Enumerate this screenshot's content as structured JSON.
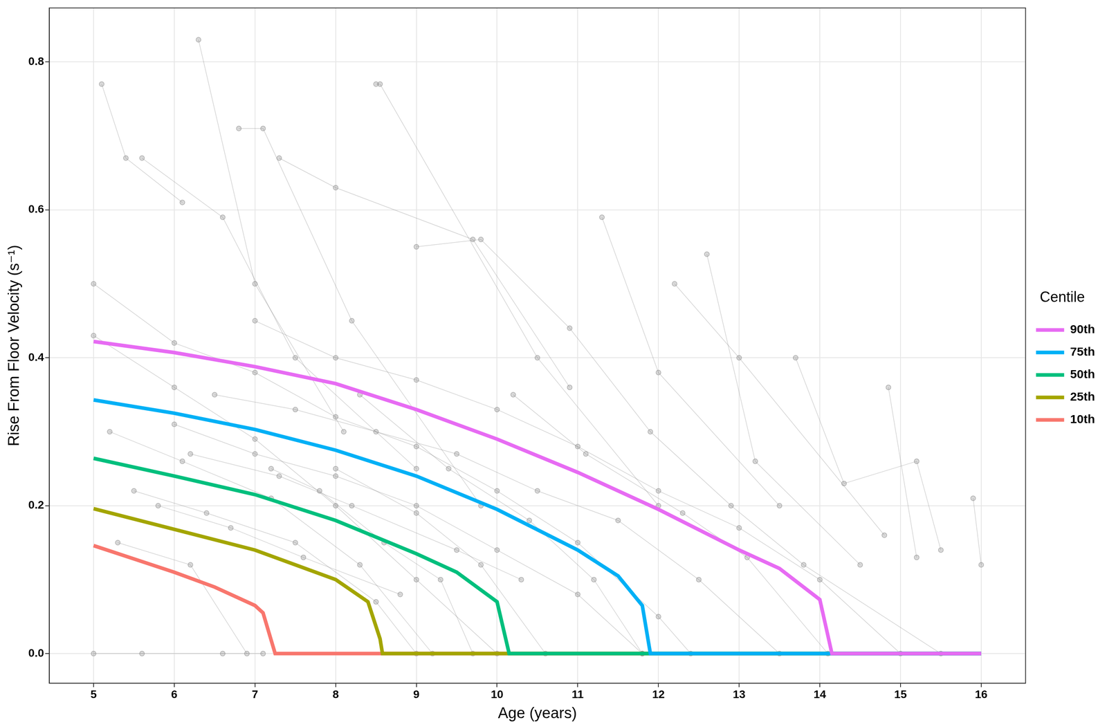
{
  "chart_data": {
    "type": "line",
    "x_label": "Age (years)",
    "y_label": "Rise From Floor Velocity (s⁻¹)",
    "xlim": [
      4.45,
      16.55
    ],
    "ylim": [
      -0.04,
      0.873
    ],
    "xticks": [
      5,
      6,
      7,
      8,
      9,
      10,
      11,
      12,
      13,
      14,
      15,
      16
    ],
    "yticks": [
      {
        "value": 0,
        "label": "0.0"
      },
      0.2,
      0.4,
      0.6,
      0.8
    ],
    "grid": true,
    "legend": "right",
    "legend_title": "Centile",
    "series": [
      {
        "name": "90th",
        "color": "#E76BF3",
        "line_style": "solid",
        "x": [
          5,
          6,
          7,
          8,
          9,
          10,
          11,
          12,
          13,
          13.5,
          14,
          14.15,
          16
        ],
        "values": [
          0.422,
          0.407,
          0.388,
          0.365,
          0.33,
          0.29,
          0.245,
          0.195,
          0.14,
          0.115,
          0.073,
          0,
          0
        ]
      },
      {
        "name": "75th",
        "color": "#00B0F6",
        "line_style": "solid",
        "x": [
          5,
          6,
          7,
          8,
          9,
          10,
          11,
          11.5,
          11.8,
          11.9,
          16
        ],
        "values": [
          0.343,
          0.325,
          0.303,
          0.275,
          0.24,
          0.195,
          0.14,
          0.105,
          0.065,
          0,
          0
        ]
      },
      {
        "name": "50th",
        "color": "#00BF7D",
        "line_style": "solid",
        "x": [
          5,
          6,
          7,
          8,
          9,
          9.5,
          10,
          10.15,
          16
        ],
        "values": [
          0.264,
          0.24,
          0.215,
          0.18,
          0.135,
          0.11,
          0.07,
          0,
          0
        ]
      },
      {
        "name": "25th",
        "color": "#A3A500",
        "line_style": "solid",
        "x": [
          5,
          6,
          7,
          7.5,
          8,
          8.4,
          8.55,
          8.58,
          16
        ],
        "values": [
          0.196,
          0.168,
          0.14,
          0.12,
          0.1,
          0.07,
          0.02,
          0,
          0
        ]
      },
      {
        "name": "10th",
        "color": "#F8766D",
        "line_style": "solid",
        "x": [
          5,
          5.5,
          6,
          6.5,
          7,
          7.1,
          7.25,
          16
        ],
        "values": [
          0.146,
          0.128,
          0.11,
          0.09,
          0.065,
          0.055,
          0,
          0
        ]
      }
    ],
    "trajectories": {
      "color": "#808080",
      "marker": "circle",
      "series": [
        {
          "x": [
            5.1,
            5.4,
            6.1
          ],
          "values": [
            0.77,
            0.67,
            0.61
          ]
        },
        {
          "x": [
            6.3,
            7.0,
            8.1
          ],
          "values": [
            0.83,
            0.5,
            0.3
          ]
        },
        {
          "x": [
            8.5,
            8.55,
            10.5,
            12.0
          ],
          "values": [
            0.77,
            0.77,
            0.4,
            0.2
          ]
        },
        {
          "x": [
            5.6,
            6.6,
            7.5,
            9.0
          ],
          "values": [
            0.67,
            0.59,
            0.4,
            0.25
          ]
        },
        {
          "x": [
            6.8,
            7.1,
            8.2,
            9.8
          ],
          "values": [
            0.71,
            0.71,
            0.45,
            0.2
          ]
        },
        {
          "x": [
            7.3,
            8.0,
            9.7,
            10.9
          ],
          "values": [
            0.67,
            0.63,
            0.56,
            0.36
          ]
        },
        {
          "x": [
            11.3,
            12.0,
            13.5
          ],
          "values": [
            0.59,
            0.38,
            0.2
          ]
        },
        {
          "x": [
            12.6,
            13.2,
            14.5
          ],
          "values": [
            0.54,
            0.26,
            0.12
          ]
        },
        {
          "x": [
            12.2,
            13.0,
            14.8
          ],
          "values": [
            0.5,
            0.4,
            0.16
          ]
        },
        {
          "x": [
            13.7,
            14.3,
            15.2,
            15.5
          ],
          "values": [
            0.4,
            0.23,
            0.26,
            0.14
          ]
        },
        {
          "x": [
            14.85,
            15.2
          ],
          "values": [
            0.36,
            0.13
          ]
        },
        {
          "x": [
            15.9,
            16.0
          ],
          "values": [
            0.21,
            0.12
          ]
        },
        {
          "x": [
            5.0,
            6.0,
            7.0,
            8.0,
            9.0,
            10.0
          ],
          "values": [
            0.43,
            0.36,
            0.29,
            0.2,
            0.1,
            0
          ]
        },
        {
          "x": [
            5.2,
            6.1,
            7.2,
            8.3,
            9.2
          ],
          "values": [
            0.3,
            0.26,
            0.21,
            0.12,
            0
          ]
        },
        {
          "x": [
            5.5,
            6.4,
            7.5,
            8.5,
            9.0
          ],
          "values": [
            0.22,
            0.19,
            0.15,
            0.07,
            0
          ]
        },
        {
          "x": [
            5.3,
            6.2,
            6.9
          ],
          "values": [
            0.15,
            0.12,
            0
          ]
        },
        {
          "x": [
            6.0,
            7.0,
            8.0,
            9.0,
            10.0,
            11.0,
            11.8
          ],
          "values": [
            0.31,
            0.27,
            0.24,
            0.2,
            0.14,
            0.08,
            0
          ]
        },
        {
          "x": [
            6.5,
            7.5,
            8.5,
            9.5,
            10.5,
            11.5,
            12.5,
            13.5
          ],
          "values": [
            0.35,
            0.33,
            0.3,
            0.27,
            0.22,
            0.18,
            0.1,
            0
          ]
        },
        {
          "x": [
            7.0,
            8.0,
            9.0,
            10.0,
            11.0,
            12.0,
            13.0,
            14.0,
            15.0
          ],
          "values": [
            0.45,
            0.4,
            0.37,
            0.33,
            0.28,
            0.22,
            0.17,
            0.1,
            0
          ]
        },
        {
          "x": [
            8.0,
            9.0,
            9.8,
            10.6
          ],
          "values": [
            0.25,
            0.19,
            0.12,
            0
          ]
        },
        {
          "x": [
            5.0,
            6.0,
            7.0,
            8.0,
            9.0,
            10.0,
            11.0,
            12.0,
            12.4
          ],
          "values": [
            0.5,
            0.42,
            0.38,
            0.32,
            0.28,
            0.22,
            0.15,
            0.05,
            0
          ]
        },
        {
          "x": [
            9.0,
            9.8,
            10.9,
            11.9,
            12.9,
            13.8,
            15.5
          ],
          "values": [
            0.55,
            0.56,
            0.44,
            0.3,
            0.2,
            0.12,
            0
          ]
        },
        {
          "x": [
            5.0,
            5.6,
            6.6,
            7.1
          ],
          "values": [
            0,
            0,
            0,
            0
          ]
        },
        {
          "x": [
            8.3,
            9.4,
            10.4,
            11.2,
            11.8
          ],
          "values": [
            0.35,
            0.25,
            0.18,
            0.1,
            0
          ]
        },
        {
          "x": [
            7.2,
            7.8,
            8.6,
            9.3,
            9.7
          ],
          "values": [
            0.25,
            0.22,
            0.15,
            0.1,
            0
          ]
        },
        {
          "x": [
            10.2,
            11.1,
            12.3,
            13.1,
            14.1
          ],
          "values": [
            0.35,
            0.27,
            0.19,
            0.13,
            0
          ]
        },
        {
          "x": [
            5.8,
            6.7,
            7.6,
            8.8
          ],
          "values": [
            0.2,
            0.17,
            0.13,
            0.08
          ]
        },
        {
          "x": [
            6.2,
            7.3,
            8.2,
            9.5,
            10.3
          ],
          "values": [
            0.27,
            0.24,
            0.2,
            0.14,
            0.1
          ]
        }
      ]
    }
  }
}
